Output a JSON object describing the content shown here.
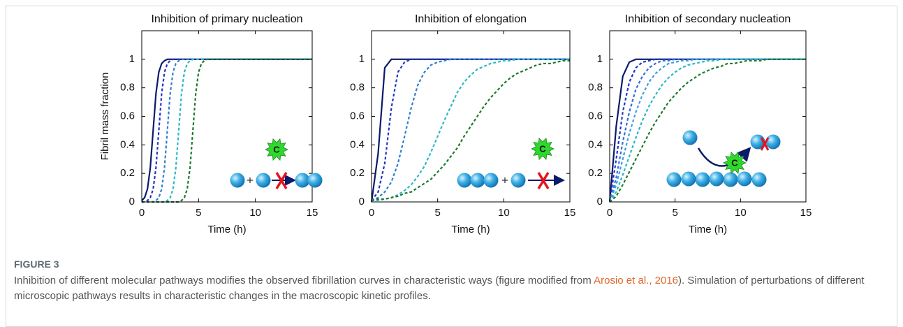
{
  "chart_data": [
    {
      "type": "line",
      "title": "Inhibition of primary nucleation",
      "xlabel": "Time (h)",
      "ylabel": "Fibril mass fraction",
      "inset_label": "C",
      "x": [
        0,
        0.25,
        0.5,
        0.75,
        1,
        1.25,
        1.5,
        1.75,
        2,
        2.25,
        2.5,
        2.75,
        3,
        3.25,
        3.5,
        3.75,
        4,
        4.25,
        4.5,
        4.75,
        5,
        5.25,
        5.5,
        5.75,
        6,
        10,
        15
      ],
      "series": [
        {
          "color": "#0b1a6b",
          "dashed": false,
          "values": [
            0.01,
            0.03,
            0.09,
            0.24,
            0.5,
            0.76,
            0.91,
            0.97,
            0.99,
            1,
            1,
            1,
            1,
            1,
            1,
            1,
            1,
            1,
            1,
            1,
            1,
            1,
            1,
            1,
            1,
            1,
            1
          ]
        },
        {
          "color": "#2336c4",
          "dashed": true,
          "values": [
            0,
            0,
            0.01,
            0.03,
            0.09,
            0.24,
            0.5,
            0.76,
            0.91,
            0.97,
            0.99,
            1,
            1,
            1,
            1,
            1,
            1,
            1,
            1,
            1,
            1,
            1,
            1,
            1,
            1,
            1,
            1
          ]
        },
        {
          "color": "#2f7fd0",
          "dashed": true,
          "values": [
            0,
            0,
            0,
            0,
            0,
            0.01,
            0.03,
            0.09,
            0.24,
            0.5,
            0.76,
            0.91,
            0.97,
            0.99,
            1,
            1,
            1,
            1,
            1,
            1,
            1,
            1,
            1,
            1,
            1,
            1,
            1
          ]
        },
        {
          "color": "#2bb8c6",
          "dashed": true,
          "values": [
            0,
            0,
            0,
            0,
            0,
            0,
            0,
            0,
            0,
            0.01,
            0.03,
            0.09,
            0.24,
            0.5,
            0.76,
            0.91,
            0.97,
            0.99,
            1,
            1,
            1,
            1,
            1,
            1,
            1,
            1,
            1
          ]
        },
        {
          "color": "#1e7a2e",
          "dashed": true,
          "values": [
            0,
            0,
            0,
            0,
            0,
            0,
            0,
            0,
            0,
            0,
            0,
            0,
            0,
            0,
            0.01,
            0.03,
            0.09,
            0.24,
            0.5,
            0.76,
            0.91,
            0.97,
            0.99,
            1,
            1,
            1,
            1
          ]
        }
      ],
      "xlim": [
        0,
        15
      ],
      "ylim": [
        0,
        1.2
      ],
      "xticks": [
        0,
        5,
        10,
        15
      ],
      "yticks": [
        0,
        0.2,
        0.4,
        0.6,
        0.8,
        1
      ],
      "grid": false
    },
    {
      "type": "line",
      "title": "Inhibition of elongation",
      "xlabel": "Time (h)",
      "inset_label": "C",
      "x": [
        0,
        0.5,
        1,
        1.5,
        2,
        2.5,
        3,
        3.5,
        4,
        4.5,
        5,
        5.5,
        6,
        6.5,
        7,
        7.5,
        8,
        8.5,
        9,
        9.5,
        10,
        10.5,
        11,
        11.5,
        12,
        12.5,
        13,
        13.5,
        14,
        14.5,
        15
      ],
      "series": [
        {
          "color": "#0b1a6b",
          "dashed": false,
          "values": [
            0,
            0.34,
            0.94,
            1,
            1,
            1,
            1,
            1,
            1,
            1,
            1,
            1,
            1,
            1,
            1,
            1,
            1,
            1,
            1,
            1,
            1,
            1,
            1,
            1,
            1,
            1,
            1,
            1,
            1,
            1,
            1
          ]
        },
        {
          "color": "#2336c4",
          "dashed": true,
          "values": [
            0.01,
            0.07,
            0.27,
            0.66,
            0.91,
            0.98,
            1,
            1,
            1,
            1,
            1,
            1,
            1,
            1,
            1,
            1,
            1,
            1,
            1,
            1,
            1,
            1,
            1,
            1,
            1,
            1,
            1,
            1,
            1,
            1,
            1
          ]
        },
        {
          "color": "#2f7fd0",
          "dashed": true,
          "values": [
            0.01,
            0.03,
            0.07,
            0.14,
            0.27,
            0.46,
            0.66,
            0.82,
            0.91,
            0.96,
            0.98,
            0.99,
            1,
            1,
            1,
            1,
            1,
            1,
            1,
            1,
            1,
            1,
            1,
            1,
            1,
            1,
            1,
            1,
            1,
            1,
            1
          ]
        },
        {
          "color": "#2bb8c6",
          "dashed": true,
          "values": [
            0.01,
            0.01,
            0.02,
            0.03,
            0.05,
            0.08,
            0.12,
            0.18,
            0.25,
            0.35,
            0.46,
            0.57,
            0.67,
            0.77,
            0.84,
            0.89,
            0.93,
            0.95,
            0.97,
            0.98,
            0.99,
            0.99,
            1,
            1,
            1,
            1,
            1,
            1,
            1,
            1,
            1
          ]
        },
        {
          "color": "#1e7a2e",
          "dashed": true,
          "values": [
            0.01,
            0.02,
            0.02,
            0.03,
            0.04,
            0.06,
            0.07,
            0.1,
            0.13,
            0.16,
            0.21,
            0.26,
            0.32,
            0.38,
            0.46,
            0.53,
            0.6,
            0.67,
            0.73,
            0.78,
            0.83,
            0.87,
            0.9,
            0.92,
            0.94,
            0.96,
            0.97,
            0.97,
            0.98,
            0.99,
            0.99
          ]
        }
      ],
      "xlim": [
        0,
        15
      ],
      "ylim": [
        0,
        1.2
      ],
      "xticks": [
        0,
        5,
        10,
        15
      ],
      "yticks": [
        0,
        0.2,
        0.4,
        0.6,
        0.8,
        1
      ],
      "grid": false
    },
    {
      "type": "line",
      "title": "Inhibition of secondary nucleation",
      "xlabel": "Time (h)",
      "inset_label": "C",
      "x": [
        0,
        0.5,
        1,
        1.5,
        2,
        2.5,
        3,
        3.5,
        4,
        4.5,
        5,
        5.5,
        6,
        6.5,
        7,
        7.5,
        8,
        8.5,
        9,
        9.5,
        10,
        10.5,
        11,
        11.5,
        12,
        12.5,
        13,
        13.5,
        14,
        14.5,
        15
      ],
      "series": [
        {
          "color": "#0b1a6b",
          "dashed": false,
          "values": [
            0,
            0.53,
            0.88,
            0.98,
            1,
            1,
            1,
            1,
            1,
            1,
            1,
            1,
            1,
            1,
            1,
            1,
            1,
            1,
            1,
            1,
            1,
            1,
            1,
            1,
            1,
            1,
            1,
            1,
            1,
            1,
            1
          ]
        },
        {
          "color": "#2336c4",
          "dashed": true,
          "values": [
            0,
            0.3,
            0.63,
            0.84,
            0.94,
            0.98,
            0.99,
            1,
            1,
            1,
            1,
            1,
            1,
            1,
            1,
            1,
            1,
            1,
            1,
            1,
            1,
            1,
            1,
            1,
            1,
            1,
            1,
            1,
            1,
            1,
            1
          ]
        },
        {
          "color": "#2f6fd8",
          "dashed": true,
          "values": [
            0,
            0.17,
            0.42,
            0.63,
            0.79,
            0.88,
            0.94,
            0.97,
            0.99,
            0.99,
            1,
            1,
            1,
            1,
            1,
            1,
            1,
            1,
            1,
            1,
            1,
            1,
            1,
            1,
            1,
            1,
            1,
            1,
            1,
            1,
            1
          ]
        },
        {
          "color": "#3f9ee0",
          "dashed": true,
          "values": [
            0,
            0.12,
            0.3,
            0.48,
            0.63,
            0.75,
            0.84,
            0.9,
            0.94,
            0.97,
            0.98,
            0.99,
            0.99,
            1,
            1,
            1,
            1,
            1,
            1,
            1,
            1,
            1,
            1,
            1,
            1,
            1,
            1,
            1,
            1,
            1,
            1
          ]
        },
        {
          "color": "#2bb8c6",
          "dashed": true,
          "values": [
            0,
            0.07,
            0.19,
            0.32,
            0.45,
            0.57,
            0.67,
            0.75,
            0.82,
            0.87,
            0.91,
            0.94,
            0.96,
            0.97,
            0.98,
            0.99,
            0.99,
            1,
            1,
            1,
            1,
            1,
            1,
            1,
            1,
            1,
            1,
            1,
            1,
            1,
            1
          ]
        },
        {
          "color": "#1e7a2e",
          "dashed": true,
          "values": [
            0,
            0.04,
            0.12,
            0.21,
            0.3,
            0.39,
            0.48,
            0.56,
            0.63,
            0.7,
            0.75,
            0.8,
            0.84,
            0.87,
            0.9,
            0.92,
            0.94,
            0.95,
            0.97,
            0.97,
            0.98,
            0.99,
            0.99,
            0.99,
            1,
            1,
            1,
            1,
            1,
            1,
            1
          ]
        }
      ],
      "xlim": [
        0,
        15
      ],
      "ylim": [
        0,
        1.2
      ],
      "xticks": [
        0,
        5,
        10,
        15
      ],
      "yticks": [
        0,
        0.2,
        0.4,
        0.6,
        0.8,
        1
      ],
      "grid": false
    }
  ],
  "caption": {
    "label": "FIGURE 3",
    "text_before_link": "Inhibition of different molecular pathways modifies the observed fibrillation curves in characteristic ways (figure modified from ",
    "link": "Arosio et al., 2016",
    "text_after_link": "). Simulation of perturbations of different microscopic pathways results in characteristic changes in the macroscopic kinetic profiles."
  }
}
